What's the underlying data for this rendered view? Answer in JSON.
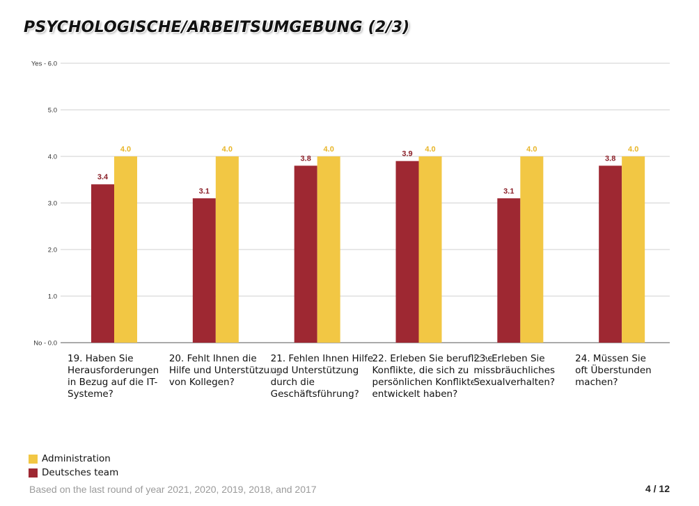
{
  "title": "PSYCHOLOGISCHE/ARBEITSUMGEBUNG (2/3)",
  "footer": {
    "note": "Based on the last round of year 2021, 2020, 2019, 2018, and 2017",
    "page": "4 / 12"
  },
  "legend": [
    {
      "label": "Administration",
      "color": "#f2c744"
    },
    {
      "label": "Deutsches team",
      "color": "#9e2832"
    }
  ],
  "chart_data": {
    "type": "bar",
    "title": "PSYCHOLOGISCHE/ARBEITSUMGEBUNG (2/3)",
    "xlabel": "",
    "ylabel": "",
    "ylim": [
      0,
      6
    ],
    "yticks": [
      "No - 0.0",
      "1.0",
      "2.0",
      "3.0",
      "4.0",
      "5.0",
      "Yes - 6.0"
    ],
    "grid": true,
    "legend_position": "bottom-left",
    "categories": [
      "19. Haben Sie\nHerausforderungen\n in Bezug auf die IT-\nSysteme?",
      "20. Fehlt Ihnen die\nHilfe und Unterstützung\n von Kollegen?",
      "21. Fehlen Ihnen Hilfe\nund Unterstützung\ndurch die\nGeschäftsführung?",
      "22. Erleben Sie berufliche\nKonflikte, die sich zu\npersönlichen Konflikten\nentwickelt haben?",
      "23. Erleben Sie\nmissbräuchliches\nSexualverhalten?",
      "24. Müssen Sie\noft Überstunden\nmachen?"
    ],
    "series": [
      {
        "name": "Deutsches team",
        "color": "#9e2832",
        "values": [
          3.4,
          3.1,
          3.8,
          3.9,
          3.1,
          3.8
        ],
        "labels": [
          "3.4",
          "3.1",
          "3.8",
          "3.9",
          "3.1",
          "3.8"
        ]
      },
      {
        "name": "Administration",
        "color": "#f2c744",
        "values": [
          4.0,
          4.0,
          4.0,
          4.0,
          4.0,
          4.0
        ],
        "labels": [
          "4.0",
          "4.0",
          "4.0",
          "4.0",
          "4.0",
          "4.0"
        ]
      }
    ]
  }
}
